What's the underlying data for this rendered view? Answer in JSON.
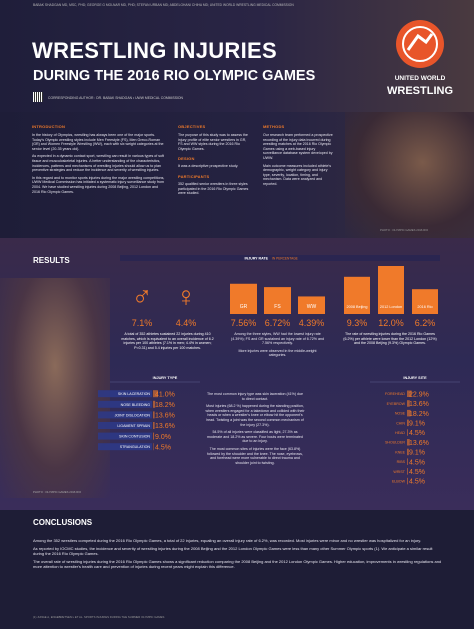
{
  "header": {
    "authors": "BABAK SHADGAN MD, MSC, PHD; GEORGE G MOLNAR MD, PHD; STEFAN URBAN MD; ABDELGHANI CHIHA MD; UNITED WORLD WRESTLING MEDICAL COMMISSION",
    "title_line1": "WRESTLING INJURIES",
    "title_line2": "DURING THE 2016 RIO OLYMPIC GAMES",
    "corresponding": "CORRESPONDING AUTHOR : DR. BABAK SHADGAN • UWW MEDICAL COMMISSION",
    "logo_line1": "UNITED WORLD",
    "logo_line2": "WRESTLING"
  },
  "intro": {
    "introduction": {
      "heading": "INTRODUCTION",
      "paragraphs": [
        "In the history of Olympics, wrestling has always been one of the major sports. Today's Olympic wrestling styles include Men Freestyle (FS), Men Greco-Roman (GR) and Women Freestyle Wrestling (WW), each with six weight categories at the senior level (20-35 years old).",
        "As expected in a dynamic contact sport, wrestling can result in various types of soft tissue and musculoskeletal injuries. A better understanding of the characteristics, incidences, patterns and mechanisms of wrestling injuries should allow us to plan preventive strategies and reduce the incidence and severity of wrestling injuries.",
        "In this regard and to monitor sports injuries during the major wrestling competitions, UWW Medical Commission has initiated a systematic injury surveillance study from 2004. We have studied wrestling injuries during 2008 Beijing, 2012 London and 2016 Rio Olympic Games."
      ]
    },
    "objectives": {
      "heading": "OBJECTIVES",
      "text": "The purpose of this study was to assess the injury profile of elite senior wrestlers in GR, FS and WW styles during the 2016 Rio Olympic Games.",
      "design_heading": "DESIGN",
      "design_text": "It was a descriptive prospective study.",
      "participants_heading": "PARTICIPANTS",
      "participants_text": "352 qualified senior wrestlers in three styles participated in the 2016 Rio Olympic Games were studied."
    },
    "methods": {
      "heading": "METHODS",
      "paragraphs": [
        "Our research team performed a prospective recording of the injury data incurred during wrestling matches at the 2016 Rio Olympic Games using a web-based injury surveillance database system developed by UWW.",
        "Main outcome measures included athlete's demographic, weight category and injury type, severity, location, timing, and mechanism. Data were analyzed and reported."
      ]
    },
    "photo_credit": "PHOTO : OLYMPIC GAMES 2016 RIO"
  },
  "results": {
    "heading": "RESULTS",
    "rate_label": "INJURY RATE",
    "rate_unit": "IN PERCENTAGE",
    "gender": {
      "symbols": [
        "♂",
        "♀"
      ],
      "values": [
        7.1,
        4.4
      ],
      "value_labels": [
        "7.1%",
        "4.4%"
      ]
    },
    "style": {
      "categories": [
        "GR",
        "FS",
        "WW"
      ],
      "values": [
        7.56,
        6.72,
        4.39
      ],
      "value_labels": [
        "7.56%",
        "6.72%",
        "4.39%"
      ],
      "ylim": [
        0,
        14
      ]
    },
    "games": {
      "categories": [
        "2008 Beijing",
        "2012 London",
        "2016 Rio"
      ],
      "values": [
        9.3,
        12.0,
        6.2
      ],
      "value_labels": [
        "9.3%",
        "12.0%",
        "6.2%"
      ],
      "ylim": [
        0,
        14
      ]
    },
    "gender_text": "A total of 352 athletes sustained 22 injuries during 410 matches, which is equivalent to an overall incidence of 6.2 injuries per 100 athletes (7.1% in men; 4.4% in women; P=0.31) and 5.4 injuries per 100 matches.",
    "style_text": [
      "Among the three styles, WW had the lowest injury rate (4.39%); FS and GR sustained an injury rate of 6.72% and 7.56% respectively.",
      "More injuries were observed in the middle-weight categories."
    ],
    "games_text": "The rate of wrestling injuries during the 2016 Rio Games (6.2%) per athlete were lower than the 2012 London (12%) and the 2008 Beijing (9.3%) Olympic Games.",
    "type": {
      "label": "INJURY TYPE",
      "categories": [
        "SKIN LACERATION",
        "NOSE BLEEDING",
        "JOINT DISLOCATION",
        "LIGAMENT SPRAIN",
        "SKIN CONTUSION",
        "STRANGULATION"
      ],
      "values": [
        41.0,
        18.2,
        13.6,
        13.6,
        9.0,
        4.5
      ],
      "value_labels": [
        "41.0%",
        "18.2%",
        "13.6%",
        "13.6%",
        "9.0%",
        "4.5%"
      ]
    },
    "site": {
      "label": "INJURY SITE",
      "categories": [
        "FOREHEAD",
        "EYEBROW",
        "NOSE",
        "CHIN",
        "HEAD",
        "SHOULDER",
        "KNEE",
        "RIBS",
        "WRIST",
        "ELBOW"
      ],
      "values": [
        22.9,
        13.6,
        18.2,
        9.1,
        4.5,
        13.6,
        9.1,
        4.5,
        4.5,
        4.5
      ],
      "value_labels": [
        "22.9%",
        "13.6%",
        "18.2%",
        "9.1%",
        "4.5%",
        "13.6%",
        "9.1%",
        "4.5%",
        "4.5%",
        "4.5%"
      ]
    },
    "center_text": [
      "The most common injury type was skin laceration (41%) due to direct contact.",
      "Most injuries (68.2 %) happened during the standing position, when wrestlers engaged for a takedown and collided with their heads or when a wrestler's knee or elbow hit the opponent's head. Twisting a joint was the second common mechanism of the injury (27.3%).",
      "54.5% of all injuries were classified as light, 27.3% as moderate and 18.2% as severe. Four bouts were terminated due to an injury.",
      "The most common sites of injuries were the face (63.8%) followed by the shoulder and the knee. The nose, eyebrows, and forehead were more vulnerable to direct trauma and shoulder joint to twisting."
    ],
    "photo_credit": "PHOTO : OLYMPIC GAMES 2016 RIO"
  },
  "conclusions": {
    "heading": "CONCLUSIONS",
    "paragraphs": [
      "Among the 352 wrestlers competed during the 2016 Rio Olympic Games, a total of 22 injuries, equaling an overall injury rate of 6.2%, was recorded. Most injuries were minor and no wrestler was hospitalized for an injury.",
      "As reported by IOCMC studies, the incidence and severity of wrestling injuries during the 2008 Beijing and the 2012 London Olympic Games were less than many other Summer Olympic sports (1). We anticipate a similar result during the 2016 Rio Olympic Games.",
      "The overall rate of wrestling injuries during the 2016 Rio Olympic Games shows a significant reduction comparing the 2008 Beijing and the 2012 London Olympic Games. Higher education, improvements in wrestling regulations and more attention to wrestler's health care and prevention of injuries during recent years might explain this difference."
    ],
    "footer": "(1) JUNGE A, ENGEBRETSEN L ET AL. SPORTS INJURIES DURING THE SUMMER OLYMPIC GAMES"
  }
}
